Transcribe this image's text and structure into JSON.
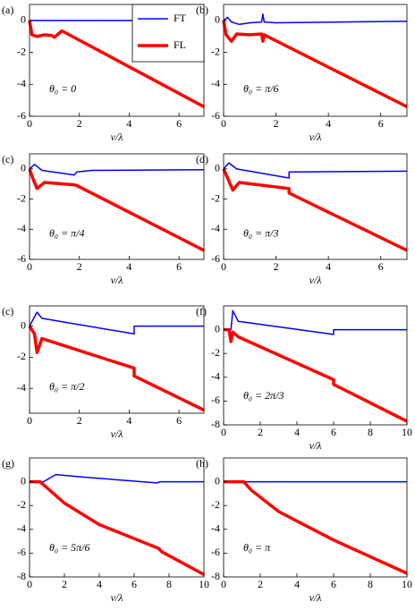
{
  "chart_data": [
    {
      "type": "line",
      "label": "(a)",
      "annotation": "θ₀ = 0",
      "x_label": "v/λ",
      "xlim": [
        0,
        7
      ],
      "xticks": [
        0,
        2,
        4,
        6
      ],
      "ylim": [
        -6,
        1
      ],
      "yticks": [
        0,
        -2,
        -4,
        -6
      ],
      "legend": "upper right",
      "series": [
        {
          "name": "FT",
          "color": "#0000ff",
          "x": [
            0,
            7
          ],
          "values": [
            0,
            0
          ]
        },
        {
          "name": "FL",
          "color": "#ff0000",
          "x": [
            0,
            0.1,
            0.3,
            0.6,
            0.9,
            1.0,
            1.3,
            7
          ],
          "values": [
            0,
            -0.9,
            -1.0,
            -0.9,
            -0.95,
            -1.05,
            -0.65,
            -5.4
          ]
        }
      ]
    },
    {
      "type": "line",
      "label": "(b)",
      "annotation": "θ₀ = π/6",
      "x_label": "v/λ",
      "xlim": [
        0,
        7
      ],
      "xticks": [
        0,
        2,
        4,
        6
      ],
      "ylim": [
        -6,
        1
      ],
      "yticks": [
        0,
        -2,
        -4,
        -6
      ],
      "series": [
        {
          "color": "#0000ff",
          "x": [
            0,
            0.15,
            0.3,
            0.6,
            1.0,
            1.45,
            1.5,
            1.55,
            2,
            7
          ],
          "values": [
            0,
            0.2,
            -0.1,
            -0.25,
            -0.15,
            -0.1,
            0.4,
            -0.1,
            -0.15,
            -0.05
          ]
        },
        {
          "color": "#ff0000",
          "x": [
            0,
            0.1,
            0.3,
            0.5,
            1,
            1.45,
            1.5,
            1.55,
            7
          ],
          "values": [
            0,
            -0.9,
            -1.3,
            -0.85,
            -0.9,
            -0.85,
            -1.3,
            -0.9,
            -5.4
          ]
        }
      ]
    },
    {
      "type": "line",
      "label": "(c)",
      "annotation": "θ₀ = π/4",
      "x_label": "v/λ",
      "xlim": [
        0,
        7
      ],
      "xticks": [
        0,
        2,
        4,
        6
      ],
      "ylim": [
        -6,
        1
      ],
      "yticks": [
        0,
        -2,
        -4,
        -6
      ],
      "series": [
        {
          "color": "#0000ff",
          "x": [
            0,
            0.2,
            0.5,
            1.8,
            1.9,
            2.5,
            7
          ],
          "values": [
            0,
            0.3,
            -0.1,
            -0.4,
            -0.2,
            -0.1,
            -0.05
          ]
        },
        {
          "color": "#ff0000",
          "x": [
            0,
            0.15,
            0.3,
            0.6,
            1.8,
            1.9,
            7
          ],
          "values": [
            0,
            -0.7,
            -1.3,
            -0.9,
            -1.05,
            -1.1,
            -5.4
          ]
        }
      ]
    },
    {
      "type": "line",
      "label": "(d)",
      "annotation": "θ₀ = π/3",
      "x_label": "v/λ",
      "xlim": [
        0,
        7
      ],
      "xticks": [
        0,
        2,
        4,
        6
      ],
      "ylim": [
        -6,
        1
      ],
      "yticks": [
        0,
        -2,
        -4,
        -6
      ],
      "series": [
        {
          "color": "#0000ff",
          "x": [
            0,
            0.2,
            0.5,
            2.5,
            2.5,
            7
          ],
          "values": [
            0,
            0.4,
            0,
            -0.6,
            -0.2,
            -0.15
          ]
        },
        {
          "color": "#ff0000",
          "x": [
            0,
            0.2,
            0.35,
            0.6,
            2.5,
            2.5,
            7
          ],
          "values": [
            0,
            -0.8,
            -1.4,
            -0.9,
            -1.3,
            -1.6,
            -5.4
          ]
        }
      ]
    },
    {
      "type": "line",
      "label": "(c)",
      "annotation": "θ₀ = π/2",
      "x_label": "v/λ",
      "xlim": [
        0,
        7
      ],
      "xticks": [
        0,
        2,
        4,
        6
      ],
      "ylim": [
        -5.6,
        1.3
      ],
      "yticks": [
        0,
        -2,
        -4
      ],
      "series": [
        {
          "color": "#0000ff",
          "x": [
            0,
            0.3,
            0.5,
            4.2,
            4.2,
            7
          ],
          "values": [
            0,
            0.9,
            0.5,
            -0.5,
            0,
            0
          ]
        },
        {
          "color": "#ff0000",
          "x": [
            0,
            0.2,
            0.3,
            0.5,
            4.2,
            4.2,
            7
          ],
          "values": [
            0,
            -0.5,
            -1.7,
            -0.8,
            -2.7,
            -3.2,
            -5.4
          ]
        }
      ]
    },
    {
      "type": "line",
      "label": "(f)",
      "annotation": "θ₀ = 2π/3",
      "x_label": "v/λ",
      "xlim": [
        0,
        10
      ],
      "xticks": [
        0,
        2,
        4,
        6,
        8,
        10
      ],
      "ylim": [
        -8,
        2
      ],
      "yticks": [
        0,
        -2,
        -4,
        -6,
        -8
      ],
      "series": [
        {
          "color": "#0000ff",
          "x": [
            0,
            0.4,
            0.5,
            0.8,
            6,
            6,
            10
          ],
          "values": [
            0,
            0,
            1.6,
            0.7,
            -0.4,
            0,
            0
          ]
        },
        {
          "color": "#ff0000",
          "x": [
            0,
            0.3,
            0.4,
            0.5,
            0.8,
            6,
            6,
            10
          ],
          "values": [
            0,
            0,
            -1.0,
            -0.2,
            -0.6,
            -4.2,
            -4.6,
            -7.7
          ]
        }
      ]
    },
    {
      "type": "line",
      "label": "(g)",
      "annotation": "θ₀ = 5π/6",
      "x_label": "v/λ",
      "xlim": [
        0,
        10
      ],
      "xticks": [
        0,
        2,
        4,
        6,
        8,
        10
      ],
      "ylim": [
        -8,
        2
      ],
      "yticks": [
        0,
        -2,
        -4,
        -6,
        -8
      ],
      "series": [
        {
          "color": "#0000ff",
          "x": [
            0,
            0.8,
            1.5,
            3,
            7.3,
            7.5,
            10
          ],
          "values": [
            0,
            0,
            0.6,
            0.4,
            -0.1,
            0,
            0
          ]
        },
        {
          "color": "#ff0000",
          "x": [
            0,
            0.6,
            1,
            2,
            4,
            7.4,
            7.6,
            10
          ],
          "values": [
            0,
            0,
            -0.5,
            -1.8,
            -3.6,
            -5.6,
            -5.9,
            -7.8
          ]
        }
      ]
    },
    {
      "type": "line",
      "label": "(h)",
      "annotation": "θ₀ = π",
      "x_label": "v/λ",
      "xlim": [
        0,
        10
      ],
      "xticks": [
        0,
        2,
        4,
        6,
        8,
        10
      ],
      "ylim": [
        -8,
        2
      ],
      "yticks": [
        0,
        -2,
        -4,
        -6,
        -8
      ],
      "series": [
        {
          "color": "#0000ff",
          "x": [
            0,
            10
          ],
          "values": [
            0,
            0
          ]
        },
        {
          "color": "#ff0000",
          "x": [
            0,
            1.1,
            1.5,
            3,
            6,
            10
          ],
          "values": [
            0,
            0,
            -0.7,
            -2.5,
            -4.9,
            -7.7
          ]
        }
      ]
    }
  ]
}
